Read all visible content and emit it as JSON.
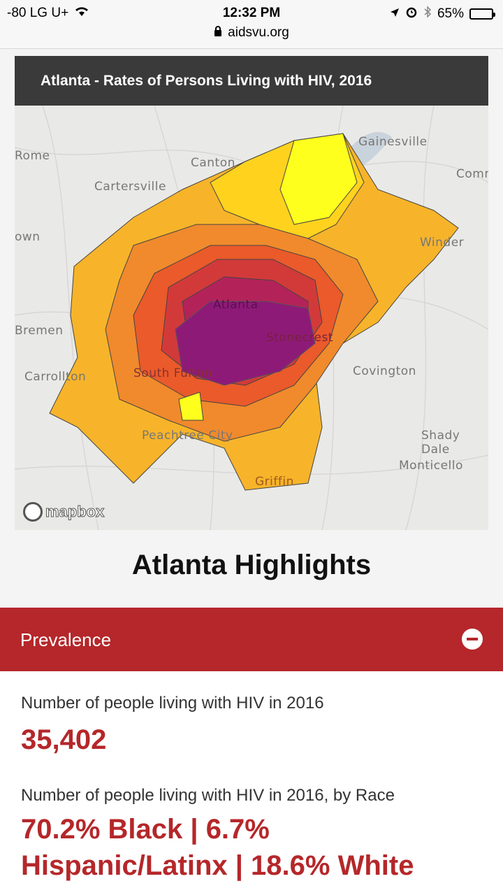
{
  "status_bar": {
    "carrier": "-80 LG U+",
    "time": "12:32 PM",
    "battery": "65%",
    "battery_level": 0.65,
    "url": "aidsvu.org"
  },
  "map": {
    "title": "Atlanta - Rates of Persons Living with HIV, 2016",
    "labels": [
      "Gainesville",
      "Rome",
      "Canton",
      "Comm",
      "Cartersville",
      "own",
      "Winder",
      "Atlanta",
      "Bremen",
      "Stonecrest",
      "Carrollton",
      "South Fulton",
      "Covington",
      "Peachtree City",
      "Shady Dale",
      "Monticello",
      "Griffin"
    ],
    "attribution": "mapbox",
    "colors": [
      "#ffff1e",
      "#ffd21e",
      "#f7b42a",
      "#f08a2c",
      "#ea5a2a",
      "#d23a3a",
      "#b3235a",
      "#8e1a78"
    ]
  },
  "highlights": {
    "title": "Atlanta Highlights"
  },
  "prevalence": {
    "label": "Prevalence",
    "stat1_label": "Number of people living with HIV in 2016",
    "stat1_value": "35,402",
    "stat2_label": "Number of people living with HIV in 2016, by Race",
    "stat2_value": "70.2% Black | 6.7% Hispanic/Latinx | 18.6% White"
  }
}
